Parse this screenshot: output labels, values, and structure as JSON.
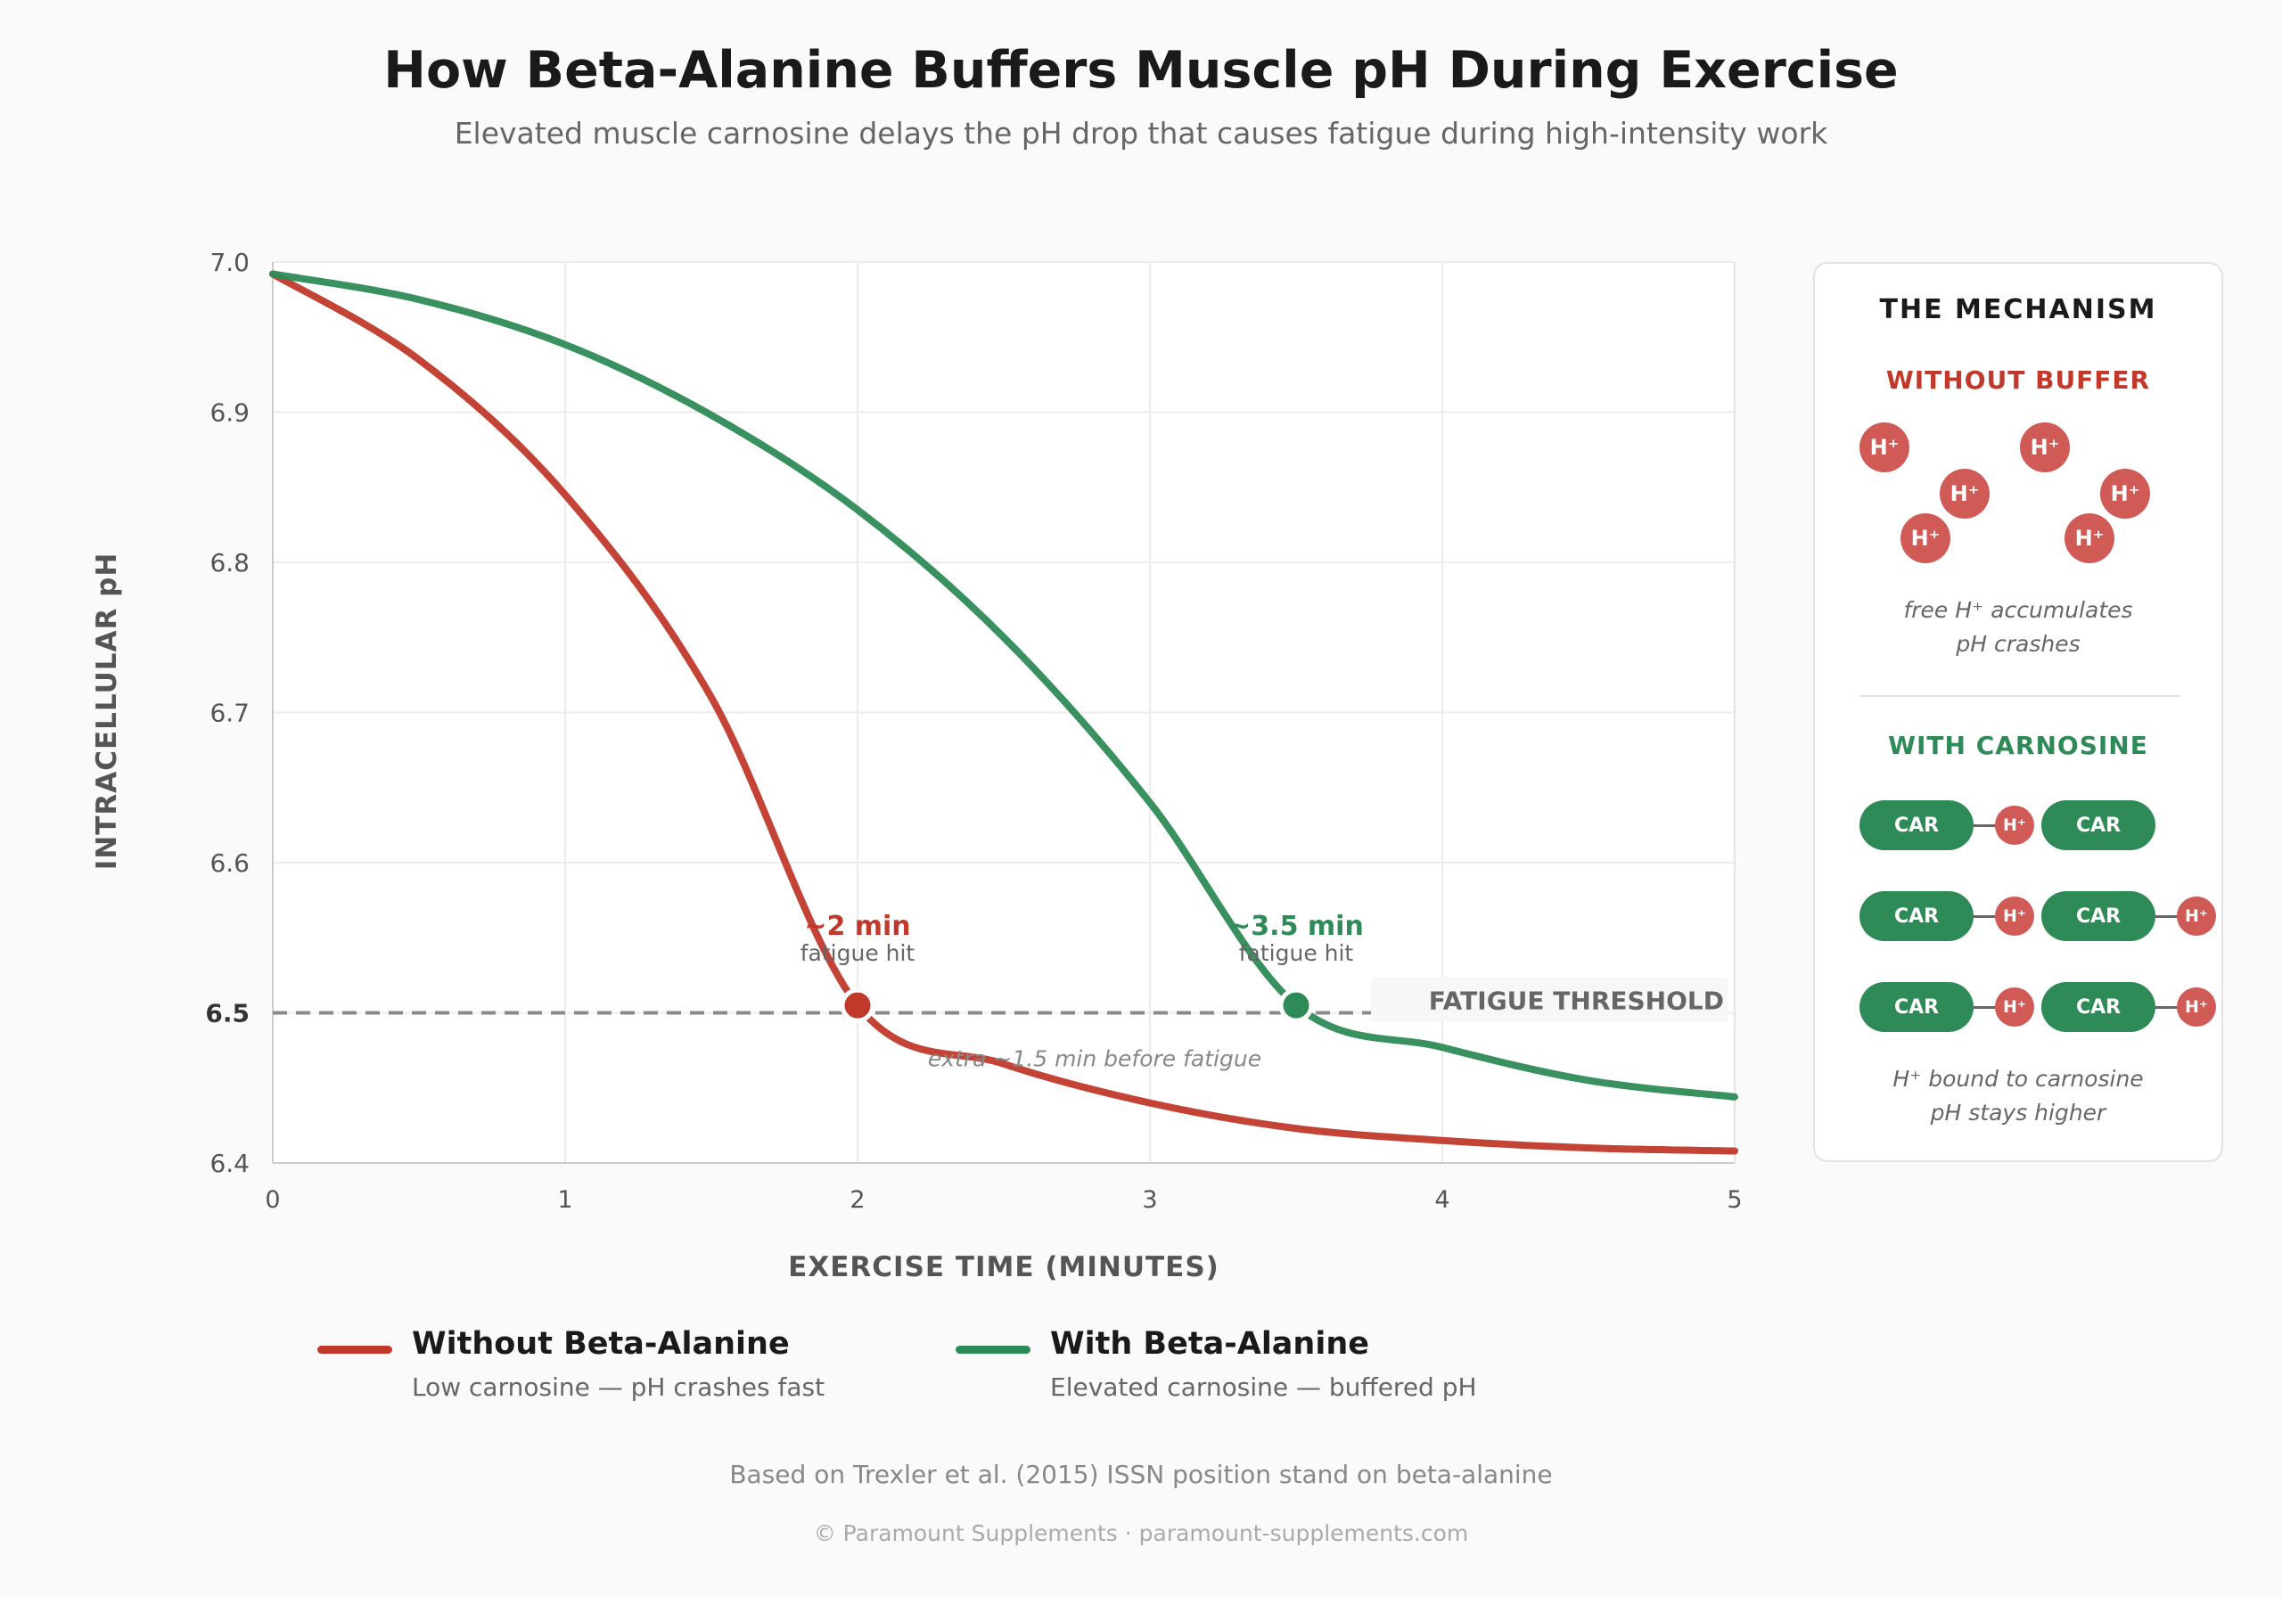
{
  "header": {
    "title": "How Beta-Alanine Buffers Muscle pH During Exercise",
    "subtitle": "Elevated muscle carnosine delays the pH drop that causes fatigue during high-intensity work"
  },
  "chart_data": {
    "type": "line",
    "xlabel": "EXERCISE TIME (MINUTES)",
    "ylabel": "INTRACELLULAR pH",
    "xlim": [
      0,
      5
    ],
    "ylim": [
      6.4,
      7.0
    ],
    "x_ticks": [
      "0",
      "1",
      "2",
      "3",
      "4",
      "5"
    ],
    "y_ticks": [
      "6.4",
      "6.5",
      "6.6",
      "6.7",
      "6.8",
      "6.9",
      "7.0"
    ],
    "grid": true,
    "x": [
      0,
      0.5,
      1,
      1.5,
      2,
      2.5,
      3,
      3.5,
      4,
      4.5,
      5
    ],
    "series": [
      {
        "name": "Without Beta-Alanine",
        "description": "Low carnosine — pH crashes fast",
        "color": "#c0392b",
        "values": [
          6.992,
          6.935,
          6.845,
          6.71,
          6.505,
          6.466,
          6.44,
          6.423,
          6.415,
          6.41,
          6.408
        ]
      },
      {
        "name": "With Beta-Alanine",
        "description": "Elevated carnosine — buffered pH",
        "color": "#2e8b57",
        "values": [
          6.992,
          6.975,
          6.945,
          6.898,
          6.835,
          6.75,
          6.64,
          6.505,
          6.477,
          6.455,
          6.444
        ]
      }
    ],
    "threshold": {
      "value": 6.5,
      "label": "FATIGUE THRESHOLD"
    },
    "annotations": [
      {
        "x": 2,
        "y": 6.505,
        "label": "~2 min",
        "sublabel": "fatigue hit",
        "color": "#c0392b"
      },
      {
        "x": 3.5,
        "y": 6.505,
        "label": "~3.5 min",
        "sublabel": "fatigue hit",
        "color": "#2e8b57"
      }
    ],
    "gap_note": "extra ~1.5 min before fatigue"
  },
  "mechanism": {
    "title": "THE MECHANISM",
    "without_title": "WITHOUT BUFFER",
    "without_color": "#c0392b",
    "ion_label": "H⁺",
    "without_caption_1": "free H⁺ accumulates",
    "without_caption_2": "pH crashes",
    "with_title": "WITH CARNOSINE",
    "with_color": "#2e8b57",
    "carnosine_label": "CAR",
    "with_caption_1": "H⁺ bound to carnosine",
    "with_caption_2": "pH stays higher"
  },
  "footer": {
    "source": "Based on Trexler et al. (2015) ISSN position stand on beta-alanine",
    "copyright": "© Paramount Supplements · paramount-supplements.com"
  }
}
